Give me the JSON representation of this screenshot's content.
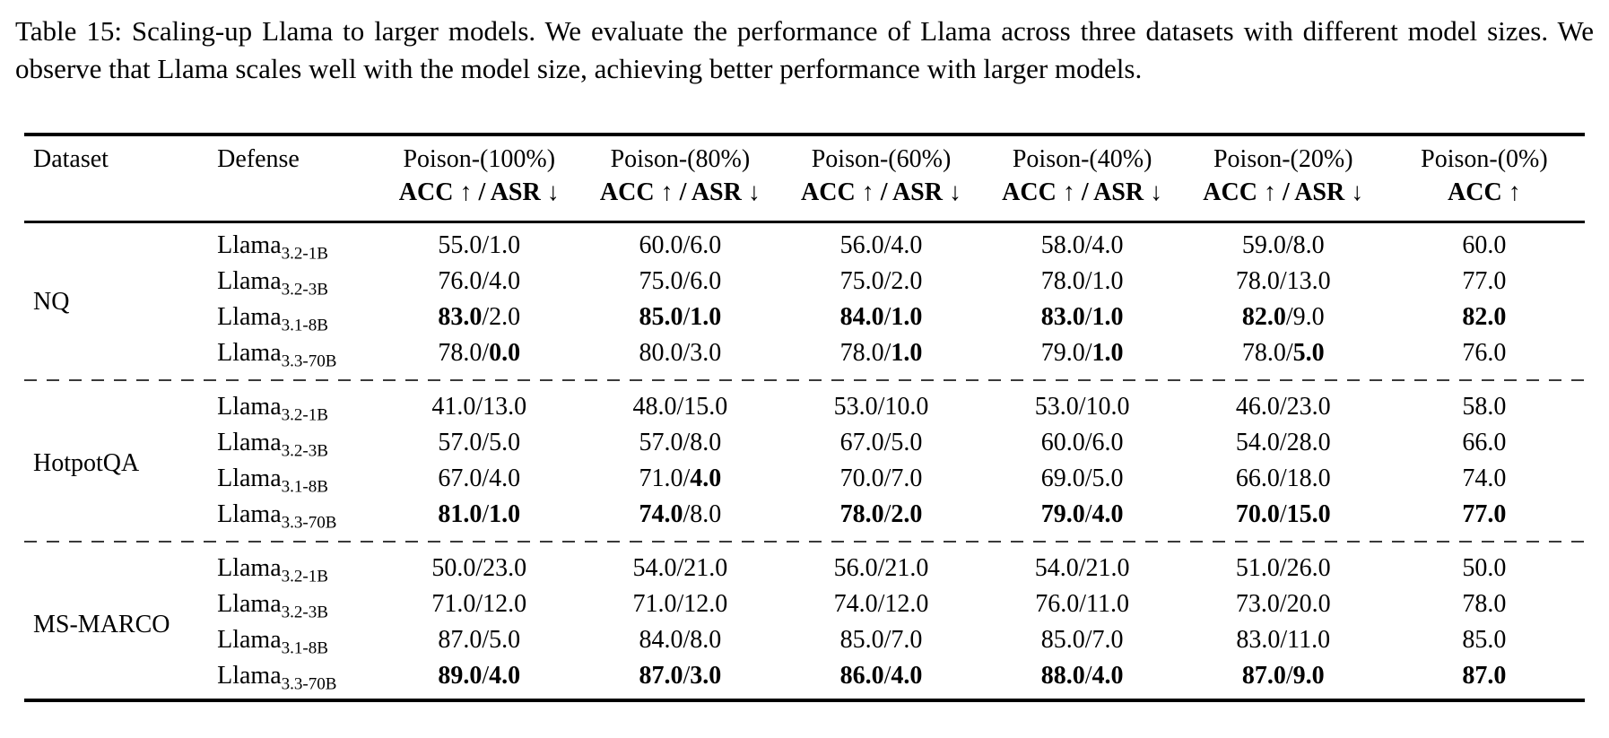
{
  "caption": "Table 15: Scaling-up Llama to larger models. We evaluate the performance of Llama across three datasets with different model sizes. We observe that Llama scales well with the model size, achieving better performance with larger models.",
  "table": {
    "columns": [
      {
        "label": "Dataset",
        "sub": ""
      },
      {
        "label": "Defense",
        "sub": ""
      },
      {
        "label": "Poison-(100%)",
        "sub": "ACC ↑ / ASR ↓"
      },
      {
        "label": "Poison-(80%)",
        "sub": "ACC ↑ / ASR ↓"
      },
      {
        "label": "Poison-(60%)",
        "sub": "ACC ↑ / ASR ↓"
      },
      {
        "label": "Poison-(40%)",
        "sub": "ACC ↑ / ASR ↓"
      },
      {
        "label": "Poison-(20%)",
        "sub": "ACC ↑ / ASR ↓"
      },
      {
        "label": "Poison-(0%)",
        "sub": "ACC ↑"
      }
    ],
    "groups": [
      {
        "dataset": "NQ",
        "rows": [
          {
            "model": {
              "base": "Llama",
              "sub": "3.2-1B"
            },
            "cells": [
              {
                "v": "55.0/1.0",
                "b": [
                  false,
                  false
                ]
              },
              {
                "v": "60.0/6.0",
                "b": [
                  false,
                  false
                ]
              },
              {
                "v": "56.0/4.0",
                "b": [
                  false,
                  false
                ]
              },
              {
                "v": "58.0/4.0",
                "b": [
                  false,
                  false
                ]
              },
              {
                "v": "59.0/8.0",
                "b": [
                  false,
                  false
                ]
              },
              {
                "v": "60.0",
                "b": [
                  false
                ]
              }
            ]
          },
          {
            "model": {
              "base": "Llama",
              "sub": "3.2-3B"
            },
            "cells": [
              {
                "v": "76.0/4.0",
                "b": [
                  false,
                  false
                ]
              },
              {
                "v": "75.0/6.0",
                "b": [
                  false,
                  false
                ]
              },
              {
                "v": "75.0/2.0",
                "b": [
                  false,
                  false
                ]
              },
              {
                "v": "78.0/1.0",
                "b": [
                  false,
                  false
                ]
              },
              {
                "v": "78.0/13.0",
                "b": [
                  false,
                  false
                ]
              },
              {
                "v": "77.0",
                "b": [
                  false
                ]
              }
            ]
          },
          {
            "model": {
              "base": "Llama",
              "sub": "3.1-8B"
            },
            "cells": [
              {
                "v": "83.0/2.0",
                "b": [
                  true,
                  false
                ]
              },
              {
                "v": "85.0/1.0",
                "b": [
                  true,
                  true
                ]
              },
              {
                "v": "84.0/1.0",
                "b": [
                  true,
                  true
                ]
              },
              {
                "v": "83.0/1.0",
                "b": [
                  true,
                  true
                ]
              },
              {
                "v": "82.0/9.0",
                "b": [
                  true,
                  false
                ]
              },
              {
                "v": "82.0",
                "b": [
                  true
                ]
              }
            ]
          },
          {
            "model": {
              "base": "Llama",
              "sub": "3.3-70B"
            },
            "cells": [
              {
                "v": "78.0/0.0",
                "b": [
                  false,
                  true
                ]
              },
              {
                "v": "80.0/3.0",
                "b": [
                  false,
                  false
                ]
              },
              {
                "v": "78.0/1.0",
                "b": [
                  false,
                  true
                ]
              },
              {
                "v": "79.0/1.0",
                "b": [
                  false,
                  true
                ]
              },
              {
                "v": "78.0/5.0",
                "b": [
                  false,
                  true
                ]
              },
              {
                "v": "76.0",
                "b": [
                  false
                ]
              }
            ]
          }
        ]
      },
      {
        "dataset": "HotpotQA",
        "rows": [
          {
            "model": {
              "base": "Llama",
              "sub": "3.2-1B"
            },
            "cells": [
              {
                "v": "41.0/13.0",
                "b": [
                  false,
                  false
                ]
              },
              {
                "v": "48.0/15.0",
                "b": [
                  false,
                  false
                ]
              },
              {
                "v": "53.0/10.0",
                "b": [
                  false,
                  false
                ]
              },
              {
                "v": "53.0/10.0",
                "b": [
                  false,
                  false
                ]
              },
              {
                "v": "46.0/23.0",
                "b": [
                  false,
                  false
                ]
              },
              {
                "v": "58.0",
                "b": [
                  false
                ]
              }
            ]
          },
          {
            "model": {
              "base": "Llama",
              "sub": "3.2-3B"
            },
            "cells": [
              {
                "v": "57.0/5.0",
                "b": [
                  false,
                  false
                ]
              },
              {
                "v": "57.0/8.0",
                "b": [
                  false,
                  false
                ]
              },
              {
                "v": "67.0/5.0",
                "b": [
                  false,
                  false
                ]
              },
              {
                "v": "60.0/6.0",
                "b": [
                  false,
                  false
                ]
              },
              {
                "v": "54.0/28.0",
                "b": [
                  false,
                  false
                ]
              },
              {
                "v": "66.0",
                "b": [
                  false
                ]
              }
            ]
          },
          {
            "model": {
              "base": "Llama",
              "sub": "3.1-8B"
            },
            "cells": [
              {
                "v": "67.0/4.0",
                "b": [
                  false,
                  false
                ]
              },
              {
                "v": "71.0/4.0",
                "b": [
                  false,
                  true
                ]
              },
              {
                "v": "70.0/7.0",
                "b": [
                  false,
                  false
                ]
              },
              {
                "v": "69.0/5.0",
                "b": [
                  false,
                  false
                ]
              },
              {
                "v": "66.0/18.0",
                "b": [
                  false,
                  false
                ]
              },
              {
                "v": "74.0",
                "b": [
                  false
                ]
              }
            ]
          },
          {
            "model": {
              "base": "Llama",
              "sub": "3.3-70B"
            },
            "cells": [
              {
                "v": "81.0/1.0",
                "b": [
                  true,
                  true
                ]
              },
              {
                "v": "74.0/8.0",
                "b": [
                  true,
                  false
                ]
              },
              {
                "v": "78.0/2.0",
                "b": [
                  true,
                  true
                ]
              },
              {
                "v": "79.0/4.0",
                "b": [
                  true,
                  true
                ]
              },
              {
                "v": "70.0/15.0",
                "b": [
                  true,
                  true
                ]
              },
              {
                "v": "77.0",
                "b": [
                  true
                ]
              }
            ]
          }
        ]
      },
      {
        "dataset": "MS-MARCO",
        "rows": [
          {
            "model": {
              "base": "Llama",
              "sub": "3.2-1B"
            },
            "cells": [
              {
                "v": "50.0/23.0",
                "b": [
                  false,
                  false
                ]
              },
              {
                "v": "54.0/21.0",
                "b": [
                  false,
                  false
                ]
              },
              {
                "v": "56.0/21.0",
                "b": [
                  false,
                  false
                ]
              },
              {
                "v": "54.0/21.0",
                "b": [
                  false,
                  false
                ]
              },
              {
                "v": "51.0/26.0",
                "b": [
                  false,
                  false
                ]
              },
              {
                "v": "50.0",
                "b": [
                  false
                ]
              }
            ]
          },
          {
            "model": {
              "base": "Llama",
              "sub": "3.2-3B"
            },
            "cells": [
              {
                "v": "71.0/12.0",
                "b": [
                  false,
                  false
                ]
              },
              {
                "v": "71.0/12.0",
                "b": [
                  false,
                  false
                ]
              },
              {
                "v": "74.0/12.0",
                "b": [
                  false,
                  false
                ]
              },
              {
                "v": "76.0/11.0",
                "b": [
                  false,
                  false
                ]
              },
              {
                "v": "73.0/20.0",
                "b": [
                  false,
                  false
                ]
              },
              {
                "v": "78.0",
                "b": [
                  false
                ]
              }
            ]
          },
          {
            "model": {
              "base": "Llama",
              "sub": "3.1-8B"
            },
            "cells": [
              {
                "v": "87.0/5.0",
                "b": [
                  false,
                  false
                ]
              },
              {
                "v": "84.0/8.0",
                "b": [
                  false,
                  false
                ]
              },
              {
                "v": "85.0/7.0",
                "b": [
                  false,
                  false
                ]
              },
              {
                "v": "85.0/7.0",
                "b": [
                  false,
                  false
                ]
              },
              {
                "v": "83.0/11.0",
                "b": [
                  false,
                  false
                ]
              },
              {
                "v": "85.0",
                "b": [
                  false
                ]
              }
            ]
          },
          {
            "model": {
              "base": "Llama",
              "sub": "3.3-70B"
            },
            "cells": [
              {
                "v": "89.0/4.0",
                "b": [
                  true,
                  true
                ]
              },
              {
                "v": "87.0/3.0",
                "b": [
                  true,
                  true
                ]
              },
              {
                "v": "86.0/4.0",
                "b": [
                  true,
                  true
                ]
              },
              {
                "v": "88.0/4.0",
                "b": [
                  true,
                  true
                ]
              },
              {
                "v": "87.0/9.0",
                "b": [
                  true,
                  true
                ]
              },
              {
                "v": "87.0",
                "b": [
                  true
                ]
              }
            ]
          }
        ]
      }
    ]
  }
}
